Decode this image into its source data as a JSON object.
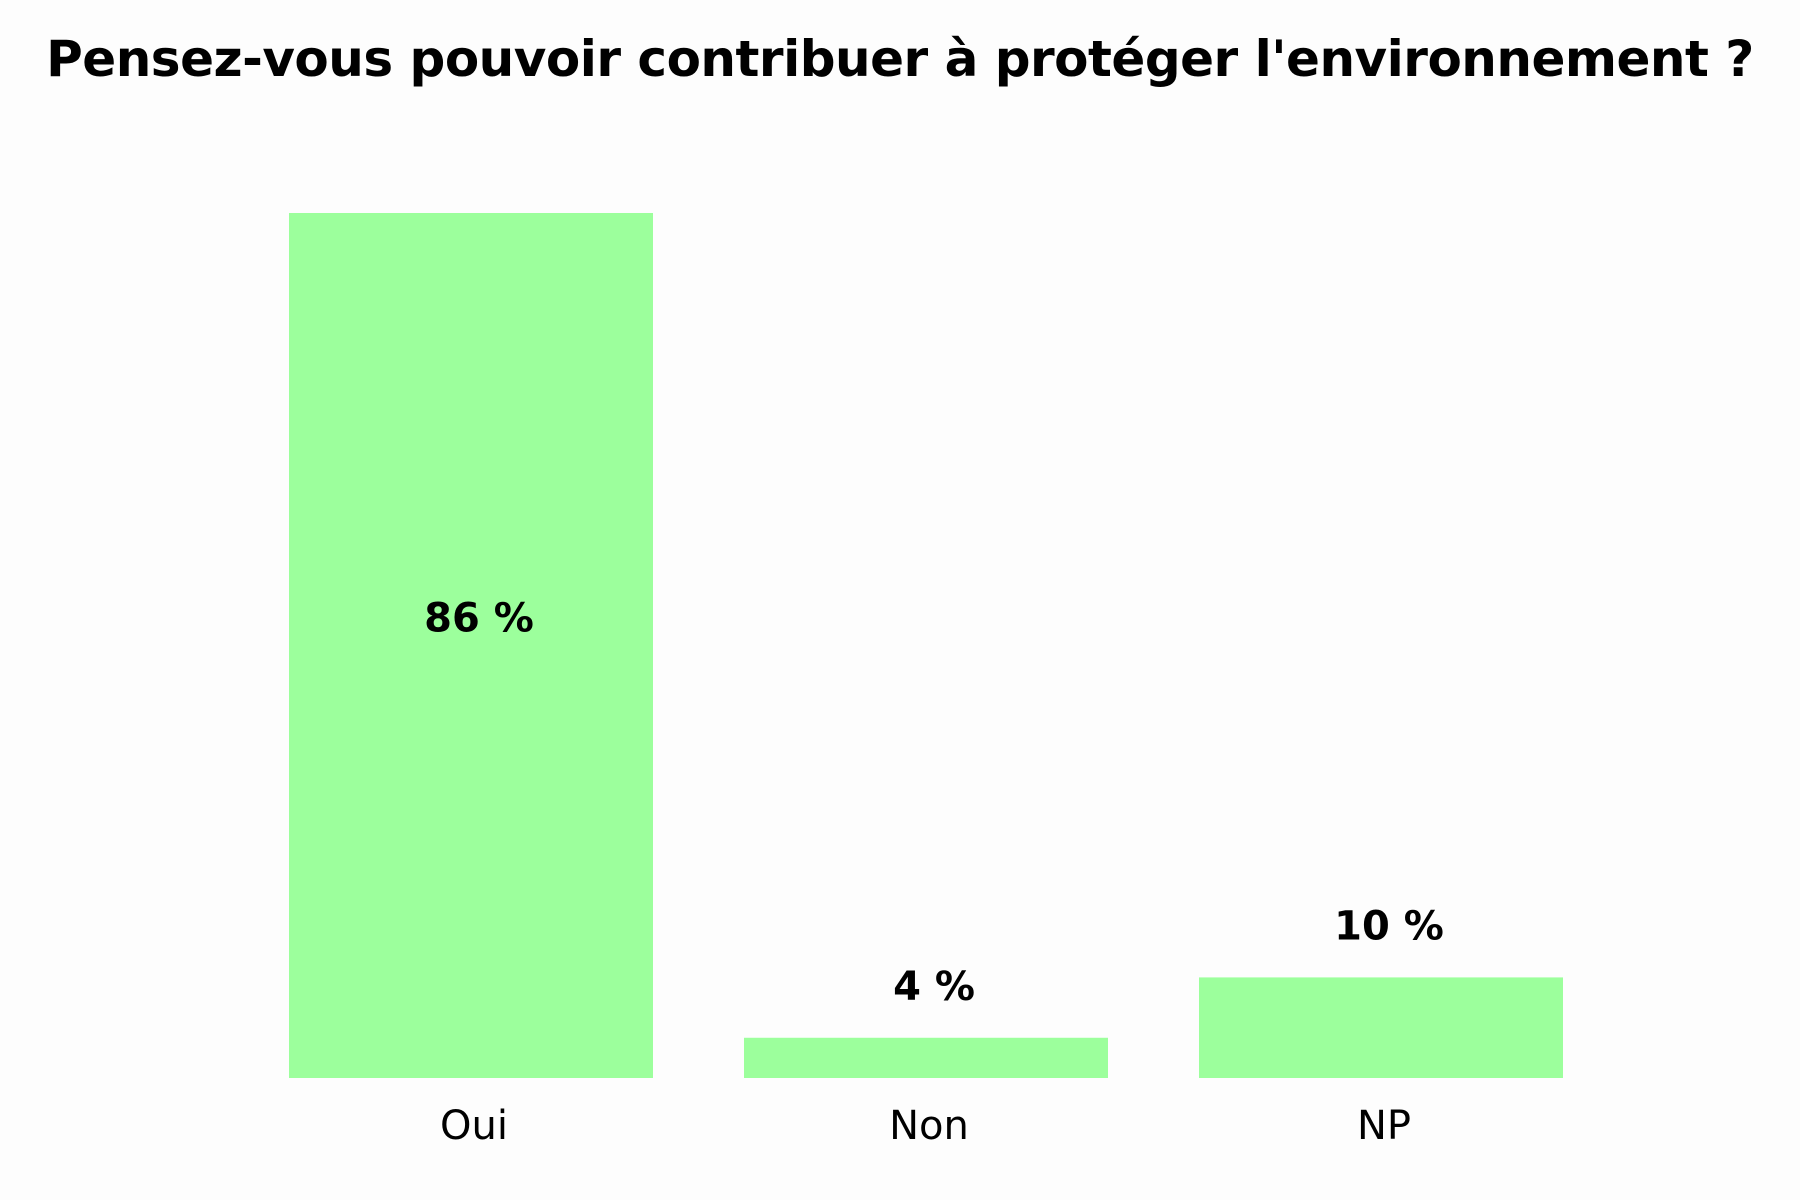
{
  "chart_data": {
    "type": "bar",
    "title": "Pensez-vous pouvoir contribuer à protéger l'environnement ?",
    "categories": [
      "Oui",
      "Non",
      "NP"
    ],
    "values": [
      86,
      4,
      10
    ],
    "value_labels": [
      "86 %",
      "4 %",
      "10 %"
    ],
    "ylim": [
      0,
      86
    ],
    "grid": false,
    "legend": "none",
    "bar_color": "#9cff9c",
    "value_label_placement": [
      "inside-middle",
      "above",
      "above"
    ]
  }
}
